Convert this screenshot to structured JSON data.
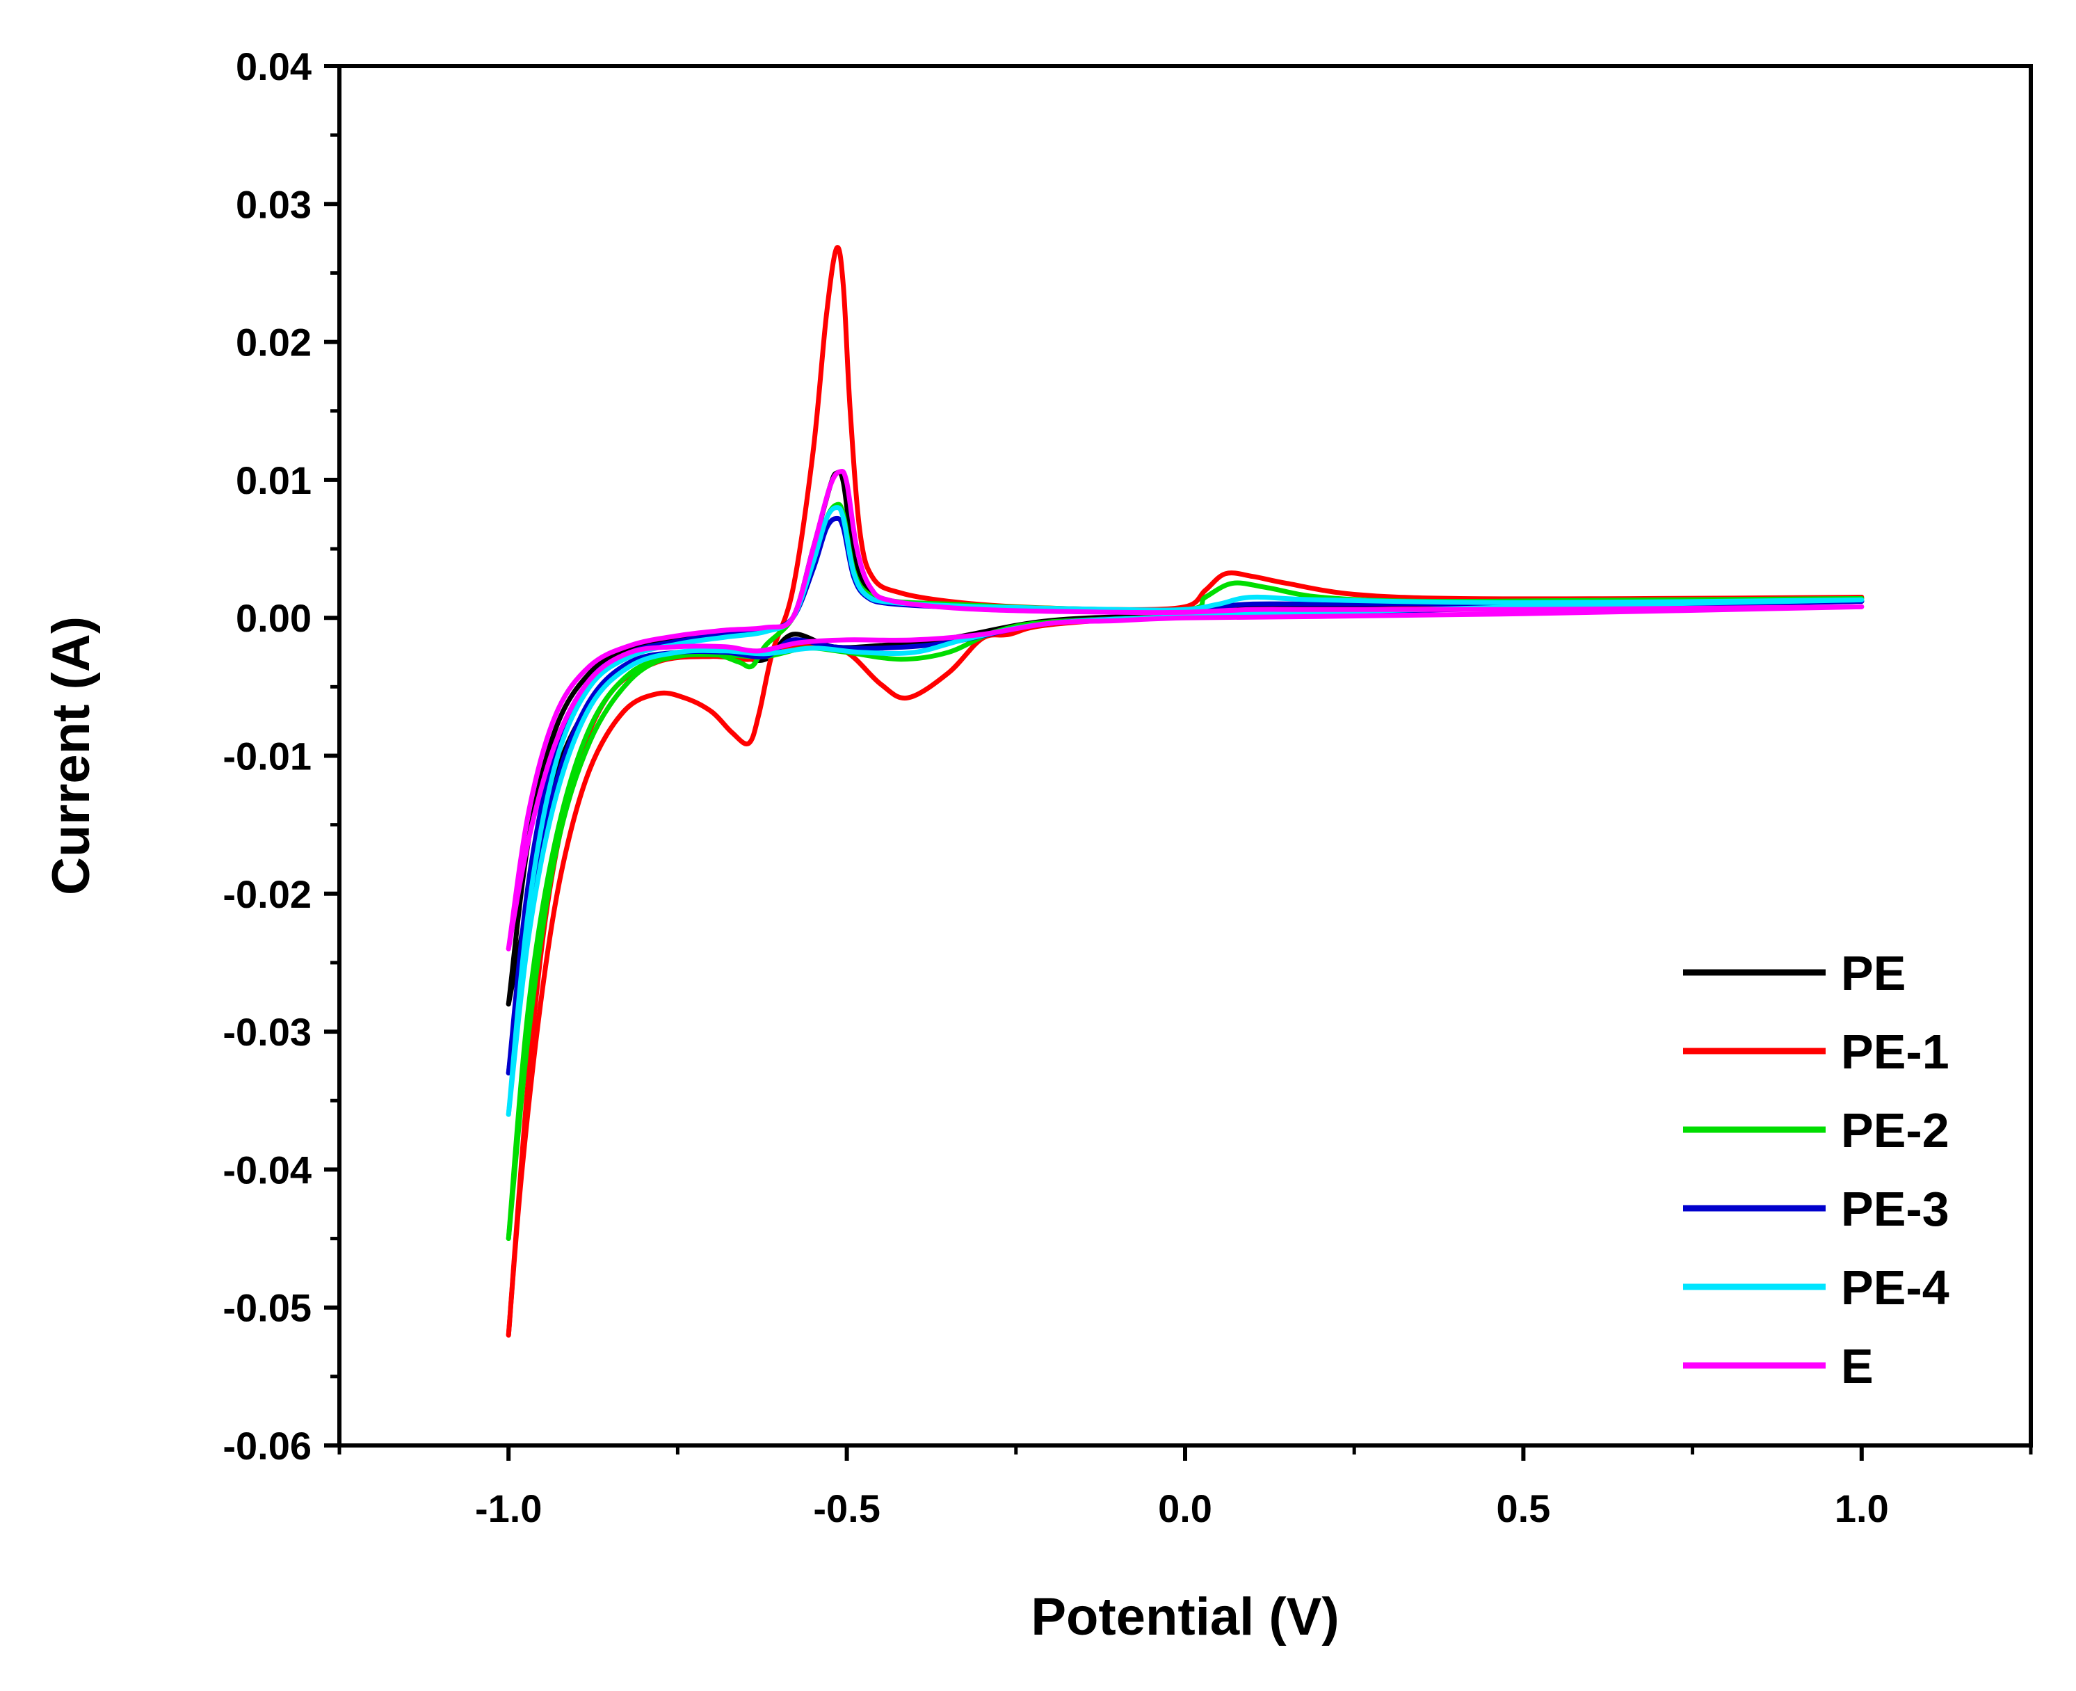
{
  "chart_data": {
    "type": "line",
    "title": "",
    "xlabel": "Potential (V)",
    "ylabel": "Current (A)",
    "xlim": [
      -1.25,
      1.25
    ],
    "ylim": [
      -0.06,
      0.04
    ],
    "xticks": [
      -1.0,
      -0.5,
      0.0,
      0.5,
      1.0
    ],
    "xtick_labels": [
      "-1.0",
      "-0.5",
      "0.0",
      "0.5",
      "1.0"
    ],
    "yticks": [
      0.04,
      0.03,
      0.02,
      0.01,
      0.0,
      -0.01,
      -0.02,
      -0.03,
      -0.04,
      -0.05,
      -0.06
    ],
    "ytick_labels": [
      "0.04",
      "0.03",
      "0.02",
      "0.01",
      "0.00",
      "-0.01",
      "-0.02",
      "-0.03",
      "-0.04",
      "-0.05",
      "-0.06"
    ],
    "legend_position": "bottom-right",
    "series": [
      {
        "name": "PE",
        "color": "#000000",
        "anodic": [
          [
            -1.0,
            -0.028
          ],
          [
            -0.97,
            -0.016
          ],
          [
            -0.93,
            -0.008
          ],
          [
            -0.88,
            -0.004
          ],
          [
            -0.82,
            -0.0022
          ],
          [
            -0.75,
            -0.0015
          ],
          [
            -0.68,
            -0.0011
          ],
          [
            -0.62,
            -0.0008
          ],
          [
            -0.58,
            0.0
          ],
          [
            -0.55,
            0.005
          ],
          [
            -0.525,
            0.0095
          ],
          [
            -0.515,
            0.0105
          ],
          [
            -0.505,
            0.0098
          ],
          [
            -0.49,
            0.0045
          ],
          [
            -0.47,
            0.002
          ],
          [
            -0.44,
            0.0013
          ],
          [
            -0.4,
            0.001
          ],
          [
            -0.3,
            0.0008
          ],
          [
            -0.2,
            0.0006
          ],
          [
            -0.1,
            0.0005
          ],
          [
            0.0,
            0.0005
          ],
          [
            0.05,
            0.0007
          ],
          [
            0.1,
            0.0008
          ],
          [
            0.2,
            0.0009
          ],
          [
            0.4,
            0.001
          ],
          [
            0.7,
            0.0011
          ],
          [
            1.0,
            0.0012
          ]
        ],
        "cathodic": [
          [
            1.0,
            0.0012
          ],
          [
            0.5,
            0.0008
          ],
          [
            0.2,
            0.0005
          ],
          [
            0.0,
            0.0002
          ],
          [
            -0.2,
            -0.0002
          ],
          [
            -0.35,
            -0.0015
          ],
          [
            -0.45,
            -0.002
          ],
          [
            -0.52,
            -0.0021
          ],
          [
            -0.58,
            -0.0012
          ],
          [
            -0.62,
            -0.003
          ],
          [
            -0.66,
            -0.0028
          ],
          [
            -0.72,
            -0.0025
          ],
          [
            -0.8,
            -0.003
          ],
          [
            -0.86,
            -0.005
          ],
          [
            -0.92,
            -0.01
          ],
          [
            -0.96,
            -0.018
          ],
          [
            -1.0,
            -0.028
          ]
        ]
      },
      {
        "name": "PE-1",
        "color": "#ff0000",
        "anodic": [
          [
            -1.0,
            -0.052
          ],
          [
            -0.98,
            -0.04
          ],
          [
            -0.95,
            -0.027
          ],
          [
            -0.92,
            -0.018
          ],
          [
            -0.88,
            -0.011
          ],
          [
            -0.83,
            -0.0068
          ],
          [
            -0.78,
            -0.0055
          ],
          [
            -0.74,
            -0.0058
          ],
          [
            -0.7,
            -0.0068
          ],
          [
            -0.67,
            -0.0083
          ],
          [
            -0.645,
            -0.0091
          ],
          [
            -0.63,
            -0.007
          ],
          [
            -0.61,
            -0.0025
          ],
          [
            -0.58,
            0.002
          ],
          [
            -0.55,
            0.012
          ],
          [
            -0.53,
            0.022
          ],
          [
            -0.515,
            0.0268
          ],
          [
            -0.505,
            0.024
          ],
          [
            -0.495,
            0.015
          ],
          [
            -0.48,
            0.006
          ],
          [
            -0.46,
            0.0028
          ],
          [
            -0.42,
            0.0018
          ],
          [
            -0.35,
            0.0012
          ],
          [
            -0.25,
            0.0008
          ],
          [
            -0.1,
            0.0006
          ],
          [
            0.0,
            0.0008
          ],
          [
            0.03,
            0.002
          ],
          [
            0.06,
            0.0032
          ],
          [
            0.1,
            0.003
          ],
          [
            0.15,
            0.0025
          ],
          [
            0.25,
            0.0017
          ],
          [
            0.4,
            0.0014
          ],
          [
            0.7,
            0.0014
          ],
          [
            1.0,
            0.0015
          ]
        ],
        "cathodic": [
          [
            1.0,
            0.0015
          ],
          [
            0.5,
            0.0009
          ],
          [
            0.2,
            0.0005
          ],
          [
            0.0,
            0.0002
          ],
          [
            -0.2,
            -0.0005
          ],
          [
            -0.26,
            -0.0012
          ],
          [
            -0.3,
            -0.0015
          ],
          [
            -0.35,
            -0.004
          ],
          [
            -0.41,
            -0.0058
          ],
          [
            -0.45,
            -0.0048
          ],
          [
            -0.5,
            -0.0025
          ],
          [
            -0.55,
            -0.002
          ],
          [
            -0.6,
            -0.0022
          ],
          [
            -0.64,
            -0.003
          ],
          [
            -0.7,
            -0.0028
          ],
          [
            -0.78,
            -0.0032
          ],
          [
            -0.85,
            -0.0055
          ],
          [
            -0.9,
            -0.011
          ],
          [
            -0.94,
            -0.02
          ],
          [
            -0.97,
            -0.033
          ],
          [
            -1.0,
            -0.052
          ]
        ]
      },
      {
        "name": "PE-2",
        "color": "#00dd00",
        "anodic": [
          [
            -1.0,
            -0.045
          ],
          [
            -0.97,
            -0.03
          ],
          [
            -0.93,
            -0.017
          ],
          [
            -0.88,
            -0.009
          ],
          [
            -0.82,
            -0.0045
          ],
          [
            -0.76,
            -0.0028
          ],
          [
            -0.7,
            -0.0026
          ],
          [
            -0.66,
            -0.0032
          ],
          [
            -0.64,
            -0.0035
          ],
          [
            -0.62,
            -0.002
          ],
          [
            -0.58,
            0.0
          ],
          [
            -0.55,
            0.004
          ],
          [
            -0.53,
            0.0072
          ],
          [
            -0.515,
            0.0082
          ],
          [
            -0.505,
            0.0075
          ],
          [
            -0.49,
            0.0035
          ],
          [
            -0.47,
            0.0018
          ],
          [
            -0.43,
            0.0012
          ],
          [
            -0.35,
            0.001
          ],
          [
            -0.2,
            0.0007
          ],
          [
            0.0,
            0.0006
          ],
          [
            0.03,
            0.0015
          ],
          [
            0.07,
            0.0025
          ],
          [
            0.12,
            0.0022
          ],
          [
            0.2,
            0.0015
          ],
          [
            0.35,
            0.0012
          ],
          [
            0.7,
            0.0013
          ],
          [
            1.0,
            0.0014
          ]
        ],
        "cathodic": [
          [
            1.0,
            0.0014
          ],
          [
            0.5,
            0.0008
          ],
          [
            0.2,
            0.0004
          ],
          [
            0.0,
            0.0001
          ],
          [
            -0.2,
            -0.0003
          ],
          [
            -0.28,
            -0.001
          ],
          [
            -0.35,
            -0.0025
          ],
          [
            -0.42,
            -0.003
          ],
          [
            -0.5,
            -0.0025
          ],
          [
            -0.56,
            -0.0022
          ],
          [
            -0.62,
            -0.0028
          ],
          [
            -0.68,
            -0.0027
          ],
          [
            -0.75,
            -0.0028
          ],
          [
            -0.82,
            -0.004
          ],
          [
            -0.88,
            -0.008
          ],
          [
            -0.93,
            -0.016
          ],
          [
            -0.97,
            -0.028
          ],
          [
            -1.0,
            -0.045
          ]
        ]
      },
      {
        "name": "PE-3",
        "color": "#0000cc",
        "anodic": [
          [
            -1.0,
            -0.033
          ],
          [
            -0.97,
            -0.019
          ],
          [
            -0.93,
            -0.0095
          ],
          [
            -0.88,
            -0.0045
          ],
          [
            -0.82,
            -0.0025
          ],
          [
            -0.75,
            -0.0017
          ],
          [
            -0.68,
            -0.0012
          ],
          [
            -0.62,
            -0.0009
          ],
          [
            -0.58,
            0.0
          ],
          [
            -0.55,
            0.0035
          ],
          [
            -0.53,
            0.0065
          ],
          [
            -0.515,
            0.0072
          ],
          [
            -0.505,
            0.0065
          ],
          [
            -0.49,
            0.003
          ],
          [
            -0.47,
            0.0015
          ],
          [
            -0.43,
            0.001
          ],
          [
            -0.3,
            0.0007
          ],
          [
            -0.1,
            0.0005
          ],
          [
            0.0,
            0.0005
          ],
          [
            0.05,
            0.0008
          ],
          [
            0.1,
            0.001
          ],
          [
            0.2,
            0.001
          ],
          [
            0.5,
            0.001
          ],
          [
            1.0,
            0.0012
          ]
        ],
        "cathodic": [
          [
            1.0,
            0.0012
          ],
          [
            0.5,
            0.0007
          ],
          [
            0.2,
            0.0004
          ],
          [
            0.0,
            0.0001
          ],
          [
            -0.2,
            -0.0004
          ],
          [
            -0.35,
            -0.0018
          ],
          [
            -0.45,
            -0.0022
          ],
          [
            -0.52,
            -0.0021
          ],
          [
            -0.58,
            -0.0016
          ],
          [
            -0.62,
            -0.0028
          ],
          [
            -0.68,
            -0.0025
          ],
          [
            -0.75,
            -0.0025
          ],
          [
            -0.82,
            -0.0032
          ],
          [
            -0.88,
            -0.006
          ],
          [
            -0.93,
            -0.012
          ],
          [
            -0.97,
            -0.021
          ],
          [
            -1.0,
            -0.033
          ]
        ]
      },
      {
        "name": "PE-4",
        "color": "#00e5ff",
        "anodic": [
          [
            -1.0,
            -0.036
          ],
          [
            -0.97,
            -0.021
          ],
          [
            -0.93,
            -0.0105
          ],
          [
            -0.88,
            -0.005
          ],
          [
            -0.82,
            -0.0028
          ],
          [
            -0.75,
            -0.0019
          ],
          [
            -0.68,
            -0.0014
          ],
          [
            -0.62,
            -0.001
          ],
          [
            -0.58,
            0.0
          ],
          [
            -0.55,
            0.004
          ],
          [
            -0.53,
            0.0072
          ],
          [
            -0.515,
            0.008
          ],
          [
            -0.505,
            0.0072
          ],
          [
            -0.49,
            0.0033
          ],
          [
            -0.47,
            0.0016
          ],
          [
            -0.43,
            0.0011
          ],
          [
            -0.3,
            0.0008
          ],
          [
            -0.1,
            0.0006
          ],
          [
            0.0,
            0.0006
          ],
          [
            0.05,
            0.001
          ],
          [
            0.1,
            0.0015
          ],
          [
            0.2,
            0.0013
          ],
          [
            0.5,
            0.0011
          ],
          [
            1.0,
            0.0013
          ]
        ],
        "cathodic": [
          [
            1.0,
            0.0013
          ],
          [
            0.5,
            0.0008
          ],
          [
            0.2,
            0.0004
          ],
          [
            0.0,
            0.0001
          ],
          [
            -0.2,
            -0.0004
          ],
          [
            -0.32,
            -0.0015
          ],
          [
            -0.4,
            -0.0025
          ],
          [
            -0.48,
            -0.0025
          ],
          [
            -0.55,
            -0.0022
          ],
          [
            -0.62,
            -0.0026
          ],
          [
            -0.68,
            -0.0024
          ],
          [
            -0.75,
            -0.0025
          ],
          [
            -0.82,
            -0.0035
          ],
          [
            -0.88,
            -0.0065
          ],
          [
            -0.93,
            -0.013
          ],
          [
            -0.97,
            -0.023
          ],
          [
            -1.0,
            -0.036
          ]
        ]
      },
      {
        "name": "E",
        "color": "#ff00ff",
        "anodic": [
          [
            -1.0,
            -0.024
          ],
          [
            -0.97,
            -0.014
          ],
          [
            -0.93,
            -0.007
          ],
          [
            -0.88,
            -0.0035
          ],
          [
            -0.82,
            -0.002
          ],
          [
            -0.75,
            -0.0013
          ],
          [
            -0.68,
            -0.0009
          ],
          [
            -0.62,
            -0.0007
          ],
          [
            -0.58,
            0.0
          ],
          [
            -0.55,
            0.005
          ],
          [
            -0.525,
            0.0095
          ],
          [
            -0.51,
            0.0106
          ],
          [
            -0.5,
            0.0098
          ],
          [
            -0.485,
            0.005
          ],
          [
            -0.465,
            0.0022
          ],
          [
            -0.43,
            0.0012
          ],
          [
            -0.3,
            0.0006
          ],
          [
            -0.1,
            0.0004
          ],
          [
            0.0,
            0.0004
          ],
          [
            0.1,
            0.0006
          ],
          [
            0.2,
            0.0006
          ],
          [
            0.5,
            0.0006
          ],
          [
            1.0,
            0.0008
          ]
        ],
        "cathodic": [
          [
            1.0,
            0.0008
          ],
          [
            0.5,
            0.0003
          ],
          [
            0.2,
            0.0001
          ],
          [
            0.0,
            0.0
          ],
          [
            -0.1,
            -0.0002
          ],
          [
            -0.2,
            -0.0004
          ],
          [
            -0.3,
            -0.0012
          ],
          [
            -0.4,
            -0.0016
          ],
          [
            -0.5,
            -0.0016
          ],
          [
            -0.57,
            -0.0018
          ],
          [
            -0.63,
            -0.0024
          ],
          [
            -0.68,
            -0.0021
          ],
          [
            -0.75,
            -0.0021
          ],
          [
            -0.82,
            -0.0025
          ],
          [
            -0.88,
            -0.0045
          ],
          [
            -0.93,
            -0.009
          ],
          [
            -0.97,
            -0.016
          ],
          [
            -1.0,
            -0.024
          ]
        ]
      }
    ]
  }
}
